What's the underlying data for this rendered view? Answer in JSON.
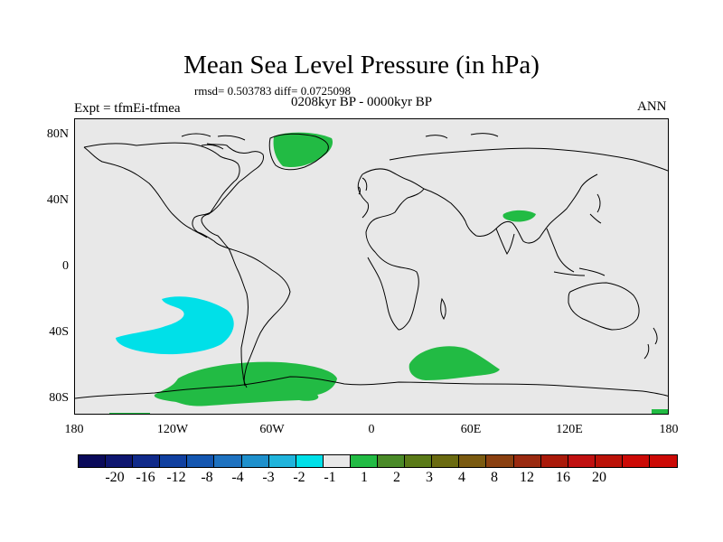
{
  "header": {
    "title": "Mean Sea Level Pressure (in hPa)",
    "stats": "rmsd= 0.503783 diff= 0.0725098",
    "period": "0208kyr BP - 0000kyr BP",
    "experiment": "Expt = tfmEi-tfmea",
    "season": "ANN"
  },
  "axes": {
    "y_labels": [
      "80N",
      "40N",
      "0",
      "40S",
      "80S"
    ],
    "x_labels": [
      "180",
      "120W",
      "60W",
      "0",
      "60E",
      "120E",
      "180"
    ]
  },
  "legend": {
    "labels": [
      "-20",
      "-16",
      "-12",
      "-8",
      "-4",
      "-3",
      "-2",
      "-1",
      "1",
      "2",
      "3",
      "4",
      "8",
      "12",
      "16",
      "20"
    ],
    "colors": [
      "#0a0a5a",
      "#0e1670",
      "#102a8a",
      "#1040a0",
      "#1456b0",
      "#1e72c0",
      "#1e90cc",
      "#20b4dc",
      "#00e0e8",
      "#e8e8e8",
      "#22bb44",
      "#4a8a28",
      "#5a7a18",
      "#6a6a10",
      "#7a5a10",
      "#8a4010",
      "#9a2a10",
      "#aa1a0a",
      "#c01010"
    ]
  },
  "chart_data": {
    "type": "heatmap",
    "title": "Mean Sea Level Pressure (in hPa)",
    "subtitle": "0208kyr BP - 0000kyr BP",
    "units": "hPa",
    "xlabel": "",
    "ylabel": "",
    "xlim": [
      -180,
      180
    ],
    "ylim": [
      -90,
      90
    ],
    "contour_levels": [
      -20,
      -16,
      -12,
      -8,
      -4,
      -3,
      -2,
      -1,
      1,
      2,
      3,
      4,
      8,
      12,
      16,
      20
    ],
    "regions": [
      {
        "name": "greenland-positive",
        "range": "1 to 2"
      },
      {
        "name": "tibet-positive",
        "range": "1 to 2"
      },
      {
        "name": "south-pacific-negative",
        "range": "-2 to -1"
      },
      {
        "name": "southern-ocean-pacific-positive",
        "range": "1 to 2"
      },
      {
        "name": "southern-ocean-indian-positive",
        "range": "1 to 2"
      }
    ]
  }
}
